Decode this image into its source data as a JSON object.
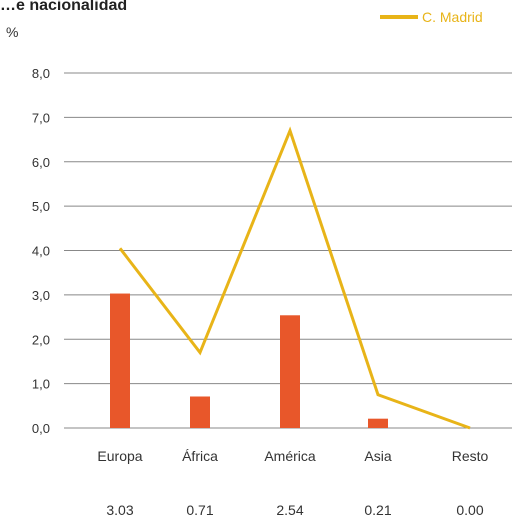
{
  "chart_data": {
    "type": "bar",
    "title": "…e nacionalidad",
    "ylabel": "%",
    "ylim": [
      0,
      8
    ],
    "yticks": [
      "0,0",
      "1,0",
      "2,0",
      "3,0",
      "4,0",
      "5,0",
      "6,0",
      "7,0",
      "8,0"
    ],
    "categories": [
      "Europa",
      "África",
      "América",
      "Asia",
      "Resto"
    ],
    "value_labels": [
      "3.03",
      "0.71",
      "2.54",
      "0.21",
      "0.00"
    ],
    "series": [
      {
        "type": "bar",
        "values": [
          3.03,
          0.71,
          2.54,
          0.21,
          0.0
        ]
      },
      {
        "type": "line",
        "name": "C. Madrid",
        "values": [
          4.05,
          1.7,
          6.7,
          0.75,
          0.0
        ]
      }
    ],
    "grid": true,
    "legend_position": "top-right",
    "colors": {
      "bar": "#E8572A",
      "line": "#E8B418",
      "grid": "#888888"
    }
  }
}
